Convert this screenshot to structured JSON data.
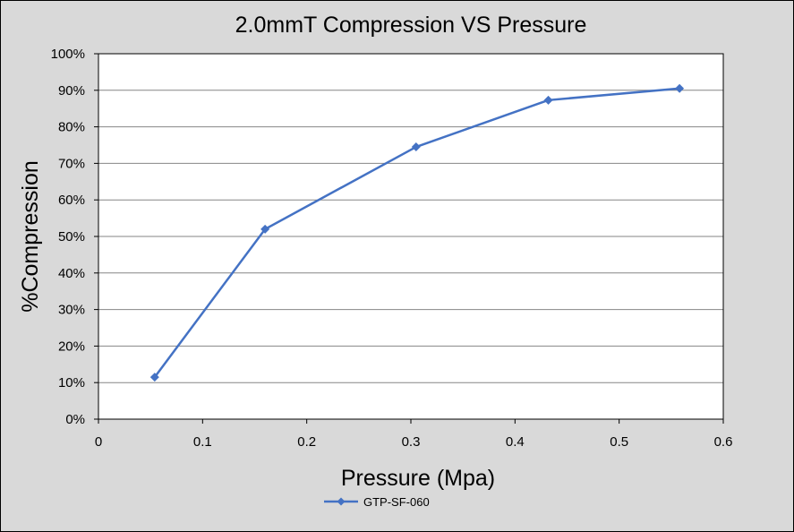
{
  "chart_data": {
    "type": "line",
    "title": "2.0mmT Compression VS Pressure",
    "xlabel": "Pressure (Mpa)",
    "ylabel": "%Compression",
    "xlim": [
      0,
      0.6
    ],
    "ylim": [
      0,
      1
    ],
    "x_ticks": [
      "0",
      "0.1",
      "0.2",
      "0.3",
      "0.4",
      "0.5",
      "0.6"
    ],
    "y_ticks": [
      "0%",
      "10%",
      "20%",
      "30%",
      "40%",
      "50%",
      "60%",
      "70%",
      "80%",
      "90%",
      "100%"
    ],
    "grid": true,
    "legend_position": "bottom",
    "series": [
      {
        "name": "GTP-SF-060",
        "color": "#4472c4",
        "marker": "diamond",
        "points": [
          {
            "x": 0.054,
            "y": 0.115
          },
          {
            "x": 0.16,
            "y": 0.52
          },
          {
            "x": 0.305,
            "y": 0.745
          },
          {
            "x": 0.432,
            "y": 0.873
          },
          {
            "x": 0.558,
            "y": 0.905
          }
        ]
      }
    ]
  }
}
